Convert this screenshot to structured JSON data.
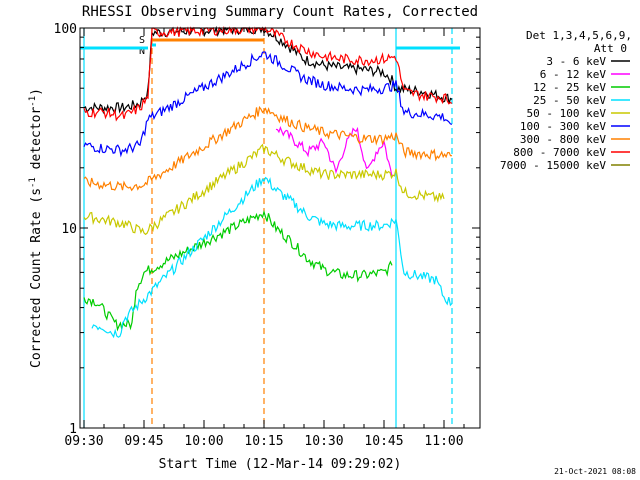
{
  "chart_data": {
    "type": "line",
    "title": "RHESSI Observing Summary Count Rates, Corrected",
    "xlabel": "Start Time (12-Mar-14 09:29:02)",
    "ylabel_main": "Corrected Count Rate (s",
    "ylabel_sup1": "-1",
    "ylabel_mid": " detector",
    "ylabel_sup2": "-1",
    "ylabel_end": ")",
    "y_scale": "log",
    "ylim": [
      1,
      100
    ],
    "xlim": [
      "09:29",
      "11:09"
    ],
    "xticks": [
      "09:30",
      "09:45",
      "10:00",
      "10:15",
      "10:30",
      "10:45",
      "11:00"
    ],
    "yticks": [
      "1",
      "10",
      "100"
    ],
    "legend_header": [
      "Det 1,3,4,5,6,9,",
      "Att 0"
    ],
    "legend_position": "right",
    "timestamp": "21-Oct-2021 08:08",
    "flags": [
      {
        "label": "S",
        "color": "#ff8000",
        "from": "09:47",
        "to": "10:15"
      },
      {
        "label": "N",
        "color": "#00e0ff",
        "from": "09:47",
        "to": "09:48"
      }
    ],
    "vertical_markers": [
      {
        "t": "09:30",
        "color": "#00e0ff",
        "style": "solid"
      },
      {
        "t": "09:47",
        "color": "#ff8000",
        "style": "dashed"
      },
      {
        "t": "10:15",
        "color": "#ff8000",
        "style": "dashed"
      },
      {
        "t": "10:48",
        "color": "#00e0ff",
        "style": "solid"
      },
      {
        "t": "11:02",
        "color": "#00e0ff",
        "style": "dashed"
      }
    ],
    "series": [
      {
        "name": "3 - 6 keV",
        "color": "#000000",
        "points": [
          [
            "09:30",
            40
          ],
          [
            "09:40",
            40
          ],
          [
            "09:44",
            42
          ],
          [
            "09:46",
            48
          ],
          [
            "09:47",
            95
          ],
          [
            "10:15",
            100
          ],
          [
            "10:20",
            85
          ],
          [
            "10:25",
            70
          ],
          [
            "10:30",
            65
          ],
          [
            "10:35",
            63
          ],
          [
            "10:40",
            62
          ],
          [
            "10:45",
            60
          ],
          [
            "10:47",
            55
          ],
          [
            "10:48",
            50
          ],
          [
            "10:55",
            48
          ],
          [
            "11:02",
            44
          ]
        ]
      },
      {
        "name": "6 - 12 keV",
        "color": "#ff00ff",
        "points": [
          [
            "10:18",
            32
          ],
          [
            "10:22",
            28
          ],
          [
            "10:26",
            24
          ],
          [
            "10:30",
            27
          ],
          [
            "10:33",
            19
          ],
          [
            "10:35",
            25
          ],
          [
            "10:38",
            32
          ],
          [
            "10:41",
            19
          ],
          [
            "10:43",
            24
          ],
          [
            "10:45",
            27
          ],
          [
            "10:47",
            18
          ]
        ]
      },
      {
        "name": "12 - 25 keV",
        "color": "#00cc00",
        "points": [
          [
            "09:30",
            4.5
          ],
          [
            "09:33",
            4.3
          ],
          [
            "09:38",
            3.3
          ],
          [
            "09:42",
            3.3
          ],
          [
            "09:43",
            5.0
          ],
          [
            "09:45",
            6.0
          ],
          [
            "10:15",
            12.0
          ],
          [
            "10:18",
            10.0
          ],
          [
            "10:22",
            8.5
          ],
          [
            "10:26",
            7.0
          ],
          [
            "10:30",
            6.2
          ],
          [
            "10:35",
            5.8
          ],
          [
            "10:40",
            5.8
          ],
          [
            "10:45",
            6.0
          ],
          [
            "10:47",
            6.5
          ]
        ]
      },
      {
        "name": "25 - 50 keV",
        "color": "#00e0ff",
        "points": [
          [
            "09:32",
            3.3
          ],
          [
            "09:35",
            3.2
          ],
          [
            "09:37",
            3.0
          ],
          [
            "09:39",
            3.0
          ],
          [
            "09:40",
            3.5
          ],
          [
            "10:15",
            18.0
          ],
          [
            "10:18",
            15.5
          ],
          [
            "10:22",
            13.5
          ],
          [
            "10:26",
            11.5
          ],
          [
            "10:30",
            10.5
          ],
          [
            "10:35",
            10.2
          ],
          [
            "10:40",
            10.3
          ],
          [
            "10:45",
            10.3
          ],
          [
            "10:48",
            11.0
          ],
          [
            "10:50",
            6.0
          ],
          [
            "10:58",
            5.5
          ],
          [
            "11:00",
            4.5
          ],
          [
            "11:02",
            4.2
          ]
        ]
      },
      {
        "name": "50 - 100 keV",
        "color": "#c8c800",
        "points": [
          [
            "09:30",
            11.5
          ],
          [
            "09:35",
            11.0
          ],
          [
            "09:40",
            10.5
          ],
          [
            "09:45",
            9.5
          ],
          [
            "10:15",
            25.0
          ],
          [
            "10:20",
            22.0
          ],
          [
            "10:25",
            20.0
          ],
          [
            "10:30",
            18.5
          ],
          [
            "10:35",
            18.5
          ],
          [
            "10:40",
            18.5
          ],
          [
            "10:45",
            18.5
          ],
          [
            "10:48",
            19.0
          ],
          [
            "10:50",
            15.0
          ],
          [
            "10:55",
            14.5
          ],
          [
            "11:00",
            14.0
          ]
        ]
      },
      {
        "name": "100 - 300 keV",
        "color": "#0000ff",
        "points": [
          [
            "09:30",
            26.0
          ],
          [
            "09:35",
            25.0
          ],
          [
            "09:40",
            24.5
          ],
          [
            "09:44",
            26.0
          ],
          [
            "09:46",
            35.0
          ],
          [
            "10:15",
            75.0
          ],
          [
            "10:20",
            65.0
          ],
          [
            "10:25",
            56.0
          ],
          [
            "10:30",
            52.0
          ],
          [
            "10:35",
            50.0
          ],
          [
            "10:40",
            49.0
          ],
          [
            "10:45",
            50.0
          ],
          [
            "10:48",
            52.0
          ],
          [
            "10:50",
            38.0
          ],
          [
            "10:55",
            37.0
          ],
          [
            "11:00",
            36.0
          ],
          [
            "11:02",
            33.0
          ]
        ]
      },
      {
        "name": "300 - 800 keV",
        "color": "#ff8000",
        "points": [
          [
            "09:30",
            17.0
          ],
          [
            "09:35",
            16.5
          ],
          [
            "09:40",
            16.0
          ],
          [
            "09:45",
            16.5
          ],
          [
            "10:15",
            40.0
          ],
          [
            "10:20",
            35.0
          ],
          [
            "10:25",
            32.0
          ],
          [
            "10:30",
            30.0
          ],
          [
            "10:35",
            29.0
          ],
          [
            "10:40",
            28.0
          ],
          [
            "10:45",
            28.0
          ],
          [
            "10:48",
            29.0
          ],
          [
            "10:50",
            24.0
          ],
          [
            "10:55",
            23.5
          ],
          [
            "11:02",
            23.0
          ]
        ]
      },
      {
        "name": "800 - 7000 keV",
        "color": "#ff0000",
        "points": [
          [
            "09:30",
            38.0
          ],
          [
            "09:35",
            38.0
          ],
          [
            "09:40",
            36.0
          ],
          [
            "09:44",
            40.0
          ],
          [
            "09:46",
            45.0
          ],
          [
            "09:47",
            95.0
          ],
          [
            "10:15",
            100.0
          ],
          [
            "10:20",
            88.0
          ],
          [
            "10:25",
            78.0
          ],
          [
            "10:30",
            72.0
          ],
          [
            "10:35",
            70.0
          ],
          [
            "10:40",
            69.0
          ],
          [
            "10:45",
            70.0
          ],
          [
            "10:48",
            72.0
          ],
          [
            "10:50",
            48.0
          ],
          [
            "10:55",
            46.0
          ],
          [
            "11:00",
            45.0
          ],
          [
            "11:02",
            42.0
          ]
        ]
      },
      {
        "name": "7000 - 15000 keV",
        "color": "#808000",
        "points": []
      }
    ]
  }
}
